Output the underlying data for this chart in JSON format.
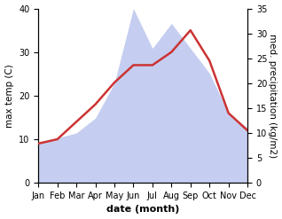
{
  "months": [
    "Jan",
    "Feb",
    "Mar",
    "Apr",
    "May",
    "Jun",
    "Jul",
    "Aug",
    "Sep",
    "Oct",
    "Nov",
    "Dec"
  ],
  "max_temp": [
    9,
    10,
    14,
    18,
    23,
    27,
    27,
    30,
    35,
    28,
    16,
    12
  ],
  "precipitation": [
    8,
    9,
    10,
    13,
    20,
    35,
    27,
    32,
    27,
    22,
    14,
    11
  ],
  "temp_color": "#cc3333",
  "precip_fill_color": "#c5cef0",
  "temp_ylim": [
    0,
    40
  ],
  "precip_ylim": [
    0,
    35
  ],
  "temp_yticks": [
    0,
    10,
    20,
    30,
    40
  ],
  "precip_yticks": [
    0,
    5,
    10,
    15,
    20,
    25,
    30,
    35
  ],
  "xlabel": "date (month)",
  "ylabel_left": "max temp (C)",
  "ylabel_right": "med. precipitation (kg/m2)",
  "xlabel_fontsize": 8,
  "ylabel_fontsize": 7.5,
  "tick_fontsize": 7,
  "bg_color": "#ffffff"
}
